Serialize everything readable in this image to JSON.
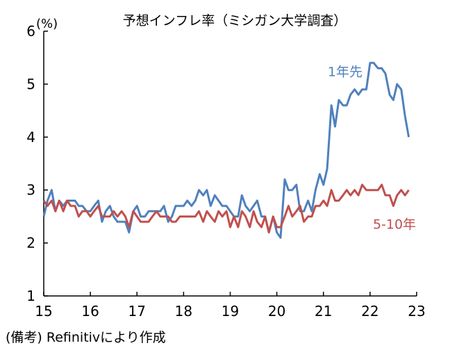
{
  "note": "(備考) Refinitivにより作成",
  "chart_data": {
    "type": "line",
    "title": "予想インフレ率（ミシガン大学調査）",
    "y_unit": "(%)",
    "ylim": [
      1,
      6
    ],
    "yticks": [
      1,
      2,
      3,
      4,
      5,
      6
    ],
    "xlim": [
      2015,
      2023
    ],
    "xticks": [
      15,
      16,
      17,
      18,
      19,
      20,
      21,
      22,
      23
    ],
    "grid": false,
    "series": [
      {
        "name": "1年先",
        "color": "#4f81bd",
        "points": [
          [
            2015.0,
            2.5
          ],
          [
            2015.08,
            2.8
          ],
          [
            2015.17,
            3.0
          ],
          [
            2015.25,
            2.6
          ],
          [
            2015.33,
            2.8
          ],
          [
            2015.42,
            2.7
          ],
          [
            2015.5,
            2.8
          ],
          [
            2015.58,
            2.8
          ],
          [
            2015.67,
            2.8
          ],
          [
            2015.75,
            2.7
          ],
          [
            2015.83,
            2.7
          ],
          [
            2015.92,
            2.6
          ],
          [
            2016.0,
            2.6
          ],
          [
            2016.08,
            2.7
          ],
          [
            2016.17,
            2.8
          ],
          [
            2016.25,
            2.4
          ],
          [
            2016.33,
            2.6
          ],
          [
            2016.42,
            2.7
          ],
          [
            2016.5,
            2.5
          ],
          [
            2016.58,
            2.4
          ],
          [
            2016.67,
            2.4
          ],
          [
            2016.75,
            2.4
          ],
          [
            2016.83,
            2.2
          ],
          [
            2016.92,
            2.6
          ],
          [
            2017.0,
            2.7
          ],
          [
            2017.08,
            2.5
          ],
          [
            2017.17,
            2.5
          ],
          [
            2017.25,
            2.6
          ],
          [
            2017.33,
            2.6
          ],
          [
            2017.42,
            2.6
          ],
          [
            2017.5,
            2.6
          ],
          [
            2017.58,
            2.7
          ],
          [
            2017.67,
            2.4
          ],
          [
            2017.75,
            2.5
          ],
          [
            2017.83,
            2.7
          ],
          [
            2017.92,
            2.7
          ],
          [
            2018.0,
            2.7
          ],
          [
            2018.08,
            2.8
          ],
          [
            2018.17,
            2.7
          ],
          [
            2018.25,
            2.8
          ],
          [
            2018.33,
            3.0
          ],
          [
            2018.42,
            2.9
          ],
          [
            2018.5,
            3.0
          ],
          [
            2018.58,
            2.7
          ],
          [
            2018.67,
            2.9
          ],
          [
            2018.75,
            2.8
          ],
          [
            2018.83,
            2.7
          ],
          [
            2018.92,
            2.7
          ],
          [
            2019.0,
            2.6
          ],
          [
            2019.08,
            2.5
          ],
          [
            2019.17,
            2.5
          ],
          [
            2019.25,
            2.9
          ],
          [
            2019.33,
            2.7
          ],
          [
            2019.42,
            2.6
          ],
          [
            2019.5,
            2.7
          ],
          [
            2019.58,
            2.8
          ],
          [
            2019.67,
            2.5
          ],
          [
            2019.75,
            2.5
          ],
          [
            2019.83,
            2.2
          ],
          [
            2019.92,
            2.5
          ],
          [
            2020.0,
            2.2
          ],
          [
            2020.08,
            2.1
          ],
          [
            2020.17,
            3.2
          ],
          [
            2020.25,
            3.0
          ],
          [
            2020.33,
            3.0
          ],
          [
            2020.42,
            3.1
          ],
          [
            2020.5,
            2.6
          ],
          [
            2020.58,
            2.6
          ],
          [
            2020.67,
            2.8
          ],
          [
            2020.75,
            2.6
          ],
          [
            2020.83,
            3.0
          ],
          [
            2020.92,
            3.3
          ],
          [
            2021.0,
            3.1
          ],
          [
            2021.08,
            3.4
          ],
          [
            2021.17,
            4.6
          ],
          [
            2021.25,
            4.2
          ],
          [
            2021.33,
            4.7
          ],
          [
            2021.42,
            4.6
          ],
          [
            2021.5,
            4.6
          ],
          [
            2021.58,
            4.8
          ],
          [
            2021.67,
            4.9
          ],
          [
            2021.75,
            4.8
          ],
          [
            2021.83,
            4.9
          ],
          [
            2021.92,
            4.9
          ],
          [
            2022.0,
            5.4
          ],
          [
            2022.08,
            5.4
          ],
          [
            2022.17,
            5.3
          ],
          [
            2022.25,
            5.3
          ],
          [
            2022.33,
            5.2
          ],
          [
            2022.42,
            4.8
          ],
          [
            2022.5,
            4.7
          ],
          [
            2022.58,
            5.0
          ],
          [
            2022.67,
            4.9
          ],
          [
            2022.75,
            4.4
          ],
          [
            2022.83,
            4.0
          ]
        ]
      },
      {
        "name": "5-10年",
        "color": "#c0504d",
        "points": [
          [
            2015.0,
            2.8
          ],
          [
            2015.08,
            2.7
          ],
          [
            2015.17,
            2.8
          ],
          [
            2015.25,
            2.6
          ],
          [
            2015.33,
            2.8
          ],
          [
            2015.42,
            2.6
          ],
          [
            2015.5,
            2.8
          ],
          [
            2015.58,
            2.7
          ],
          [
            2015.67,
            2.7
          ],
          [
            2015.75,
            2.5
          ],
          [
            2015.83,
            2.6
          ],
          [
            2015.92,
            2.6
          ],
          [
            2016.0,
            2.5
          ],
          [
            2016.08,
            2.6
          ],
          [
            2016.17,
            2.7
          ],
          [
            2016.25,
            2.5
          ],
          [
            2016.33,
            2.5
          ],
          [
            2016.42,
            2.5
          ],
          [
            2016.5,
            2.6
          ],
          [
            2016.58,
            2.5
          ],
          [
            2016.67,
            2.6
          ],
          [
            2016.75,
            2.5
          ],
          [
            2016.83,
            2.3
          ],
          [
            2016.92,
            2.6
          ],
          [
            2017.0,
            2.5
          ],
          [
            2017.08,
            2.4
          ],
          [
            2017.17,
            2.4
          ],
          [
            2017.25,
            2.4
          ],
          [
            2017.33,
            2.5
          ],
          [
            2017.42,
            2.6
          ],
          [
            2017.5,
            2.5
          ],
          [
            2017.58,
            2.5
          ],
          [
            2017.67,
            2.5
          ],
          [
            2017.75,
            2.4
          ],
          [
            2017.83,
            2.4
          ],
          [
            2017.92,
            2.5
          ],
          [
            2018.0,
            2.5
          ],
          [
            2018.08,
            2.5
          ],
          [
            2018.17,
            2.5
          ],
          [
            2018.25,
            2.5
          ],
          [
            2018.33,
            2.6
          ],
          [
            2018.42,
            2.4
          ],
          [
            2018.5,
            2.6
          ],
          [
            2018.58,
            2.5
          ],
          [
            2018.67,
            2.4
          ],
          [
            2018.75,
            2.6
          ],
          [
            2018.83,
            2.5
          ],
          [
            2018.92,
            2.6
          ],
          [
            2019.0,
            2.3
          ],
          [
            2019.08,
            2.5
          ],
          [
            2019.17,
            2.3
          ],
          [
            2019.25,
            2.6
          ],
          [
            2019.33,
            2.5
          ],
          [
            2019.42,
            2.3
          ],
          [
            2019.5,
            2.6
          ],
          [
            2019.58,
            2.4
          ],
          [
            2019.67,
            2.3
          ],
          [
            2019.75,
            2.5
          ],
          [
            2019.83,
            2.2
          ],
          [
            2019.92,
            2.5
          ],
          [
            2020.0,
            2.3
          ],
          [
            2020.08,
            2.3
          ],
          [
            2020.17,
            2.5
          ],
          [
            2020.25,
            2.7
          ],
          [
            2020.33,
            2.5
          ],
          [
            2020.42,
            2.6
          ],
          [
            2020.5,
            2.7
          ],
          [
            2020.58,
            2.4
          ],
          [
            2020.67,
            2.5
          ],
          [
            2020.75,
            2.5
          ],
          [
            2020.83,
            2.7
          ],
          [
            2020.92,
            2.7
          ],
          [
            2021.0,
            2.8
          ],
          [
            2021.08,
            2.7
          ],
          [
            2021.17,
            3.0
          ],
          [
            2021.25,
            2.8
          ],
          [
            2021.33,
            2.8
          ],
          [
            2021.42,
            2.9
          ],
          [
            2021.5,
            3.0
          ],
          [
            2021.58,
            2.9
          ],
          [
            2021.67,
            3.0
          ],
          [
            2021.75,
            2.9
          ],
          [
            2021.83,
            3.1
          ],
          [
            2021.92,
            3.0
          ],
          [
            2022.0,
            3.0
          ],
          [
            2022.08,
            3.0
          ],
          [
            2022.17,
            3.0
          ],
          [
            2022.25,
            3.1
          ],
          [
            2022.33,
            2.9
          ],
          [
            2022.42,
            2.9
          ],
          [
            2022.5,
            2.7
          ],
          [
            2022.58,
            2.9
          ],
          [
            2022.67,
            3.0
          ],
          [
            2022.75,
            2.9
          ],
          [
            2022.83,
            3.0
          ]
        ]
      }
    ]
  }
}
